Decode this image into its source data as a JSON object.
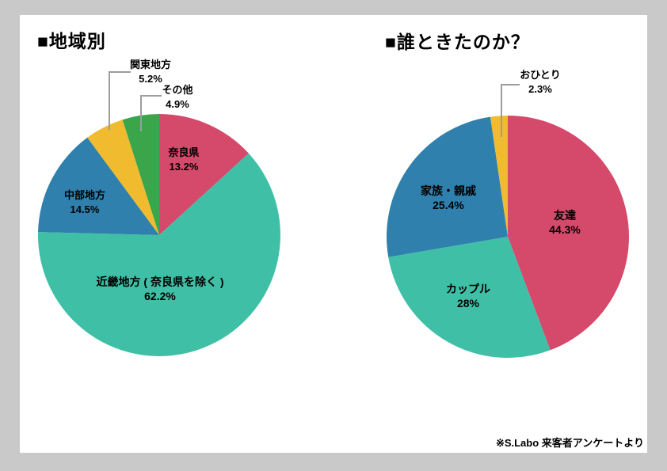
{
  "page": {
    "background_color": "#c9c9c9",
    "card_color": "#ffffff"
  },
  "footer": {
    "note": "※S.Labo 来客者アンケートより"
  },
  "chart_data": [
    {
      "type": "pie",
      "title": "■地域別",
      "direction": "clockwise",
      "start_angle_deg": 0,
      "legend_position": "none",
      "slices": [
        {
          "label": "奈良県",
          "value": 13.2,
          "pct_text": "13.2%",
          "color": "#d5496b",
          "label_placement": "inside"
        },
        {
          "label": "近畿地方 ( 奈良県を除く )",
          "value": 62.2,
          "pct_text": "62.2%",
          "color": "#3fc0a6",
          "label_placement": "inside"
        },
        {
          "label": "中部地方",
          "value": 14.5,
          "pct_text": "14.5%",
          "color": "#2f80ad",
          "label_placement": "inside"
        },
        {
          "label": "関東地方",
          "value": 5.2,
          "pct_text": "5.2%",
          "color": "#f0bb2f",
          "label_placement": "callout"
        },
        {
          "label": "その他",
          "value": 4.9,
          "pct_text": "4.9%",
          "color": "#3ba54b",
          "label_placement": "callout"
        }
      ]
    },
    {
      "type": "pie",
      "title": "■誰ときたのか？",
      "direction": "clockwise",
      "start_angle_deg": 0,
      "legend_position": "none",
      "slices": [
        {
          "label": "友達",
          "value": 44.3,
          "pct_text": "44.3%",
          "color": "#d5496b",
          "label_placement": "inside"
        },
        {
          "label": "カップル",
          "value": 28,
          "pct_text": "28%",
          "color": "#3fc0a6",
          "label_placement": "inside"
        },
        {
          "label": "家族・親戚",
          "value": 25.4,
          "pct_text": "25.4%",
          "color": "#2f80ad",
          "label_placement": "inside"
        },
        {
          "label": "おひとり",
          "value": 2.3,
          "pct_text": "2.3%",
          "color": "#f0bb2f",
          "label_placement": "callout"
        }
      ]
    }
  ]
}
